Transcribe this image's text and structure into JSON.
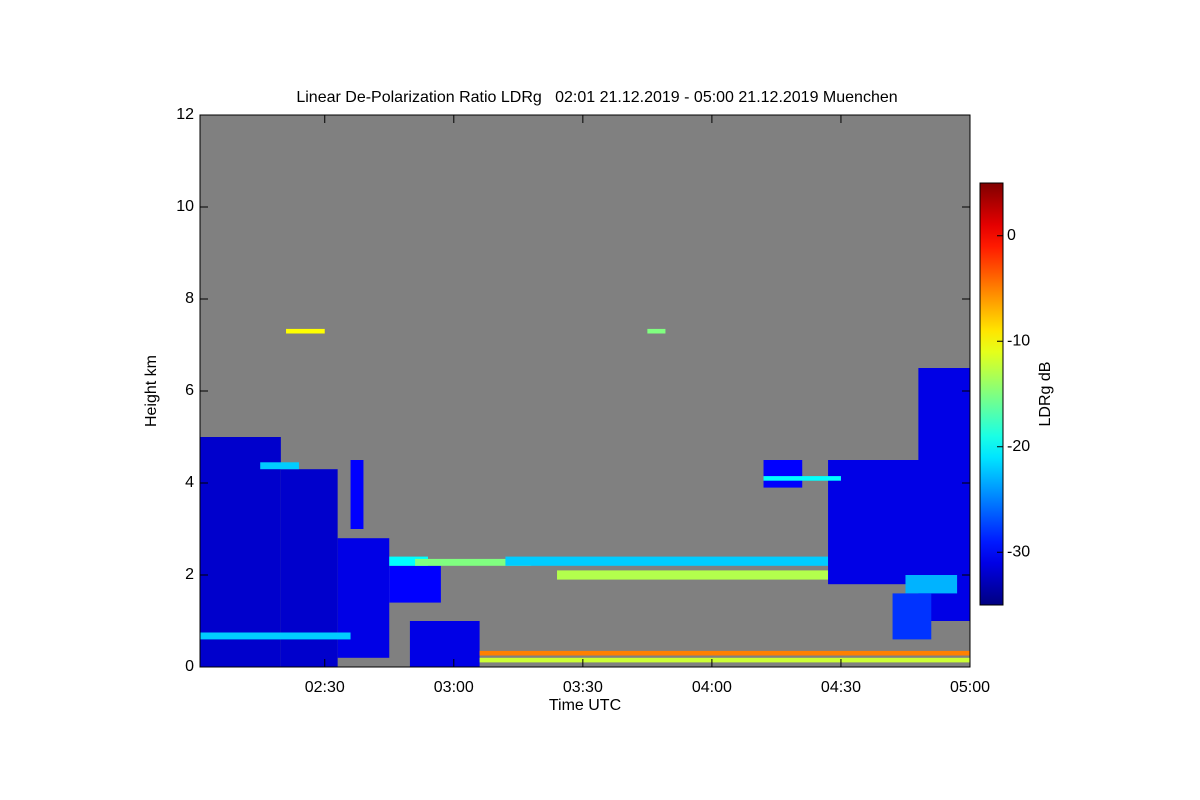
{
  "chart_data": {
    "type": "heatmap",
    "title": "Linear De-Polarization Ratio LDRg   02:01 21.12.2019 - 05:00 21.12.2019 Muenchen",
    "xlabel": "Time UTC",
    "ylabel": "Height km",
    "colorbar_label": "LDRg dB",
    "xlim": [
      2.0167,
      5.0
    ],
    "xticks": [
      {
        "value": 2.5,
        "label": "02:30"
      },
      {
        "value": 3.0,
        "label": "03:00"
      },
      {
        "value": 3.5,
        "label": "03:30"
      },
      {
        "value": 4.0,
        "label": "04:00"
      },
      {
        "value": 4.5,
        "label": "04:30"
      },
      {
        "value": 5.0,
        "label": "05:00"
      }
    ],
    "ylim": [
      0,
      12
    ],
    "yticks": [
      0,
      2,
      4,
      6,
      8,
      10,
      12
    ],
    "zlim": [
      -35,
      5
    ],
    "zticks": [
      0,
      -10,
      -20,
      -30
    ],
    "colormap": "jet",
    "background": "#808080",
    "cells": [
      {
        "x": [
          2.0167,
          2.33
        ],
        "y": [
          0,
          5.0
        ],
        "value": -32
      },
      {
        "x": [
          2.33,
          2.55
        ],
        "y": [
          0,
          4.3
        ],
        "value": -32
      },
      {
        "x": [
          2.55,
          2.75
        ],
        "y": [
          0.2,
          2.8
        ],
        "value": -31
      },
      {
        "x": [
          2.75,
          2.95
        ],
        "y": [
          1.4,
          2.2
        ],
        "value": -30
      },
      {
        "x": [
          2.83,
          3.1
        ],
        "y": [
          0,
          1.0
        ],
        "value": -31
      },
      {
        "x": [
          2.0167,
          2.6
        ],
        "y": [
          0.6,
          0.75
        ],
        "value": -22
      },
      {
        "x": [
          2.75,
          2.9
        ],
        "y": [
          2.2,
          2.4
        ],
        "value": -20
      },
      {
        "x": [
          2.85,
          3.3
        ],
        "y": [
          2.2,
          2.35
        ],
        "value": -15
      },
      {
        "x": [
          3.2,
          4.55
        ],
        "y": [
          2.2,
          2.4
        ],
        "value": -22
      },
      {
        "x": [
          3.4,
          4.6
        ],
        "y": [
          1.9,
          2.1
        ],
        "value": -13
      },
      {
        "x": [
          3.1,
          5.0
        ],
        "y": [
          0.25,
          0.35
        ],
        "value": -5
      },
      {
        "x": [
          3.1,
          5.0
        ],
        "y": [
          0.1,
          0.2
        ],
        "value": -12
      },
      {
        "x": [
          2.35,
          2.5
        ],
        "y": [
          7.25,
          7.35
        ],
        "value": -10
      },
      {
        "x": [
          3.75,
          3.82
        ],
        "y": [
          7.25,
          7.35
        ],
        "value": -15
      },
      {
        "x": [
          4.45,
          4.85
        ],
        "y": [
          1.8,
          4.5
        ],
        "value": -31
      },
      {
        "x": [
          4.8,
          5.0
        ],
        "y": [
          1.0,
          6.5
        ],
        "value": -31
      },
      {
        "x": [
          4.75,
          4.95
        ],
        "y": [
          1.6,
          2.0
        ],
        "value": -23
      },
      {
        "x": [
          4.2,
          4.35
        ],
        "y": [
          3.9,
          4.5
        ],
        "value": -30
      },
      {
        "x": [
          4.2,
          4.5
        ],
        "y": [
          4.05,
          4.15
        ],
        "value": -20
      },
      {
        "x": [
          2.6,
          2.65
        ],
        "y": [
          3.0,
          4.5
        ],
        "value": -30
      },
      {
        "x": [
          2.25,
          2.4
        ],
        "y": [
          4.3,
          4.45
        ],
        "value": -22
      },
      {
        "x": [
          4.7,
          4.85
        ],
        "y": [
          0.6,
          1.6
        ],
        "value": -28
      }
    ]
  }
}
